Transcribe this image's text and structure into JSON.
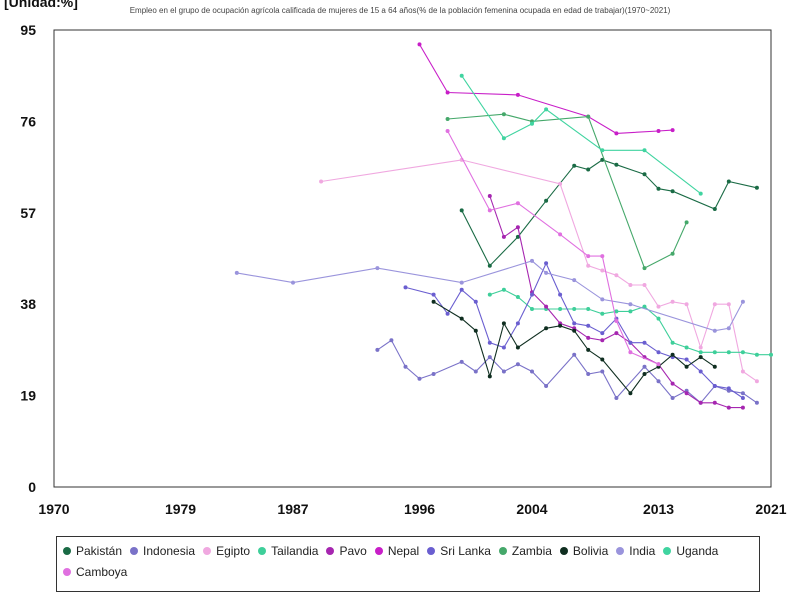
{
  "chart_data": {
    "type": "line",
    "title": "Empleo en el grupo de ocupación agrícola calificada de mujeres de 15 a 64 años(% de la población femenina ocupada en edad de trabajar)(1970~2021)",
    "ylabel": "[Unidad:%]",
    "xlabel": "",
    "xlim": [
      1970,
      2021
    ],
    "ylim": [
      0,
      95
    ],
    "x_ticks": [
      "1970",
      "1979",
      "1987",
      "1996",
      "2004",
      "2013",
      "2021"
    ],
    "x_tick_values": [
      1970,
      1979,
      1987,
      1996,
      2004,
      2013,
      2021
    ],
    "y_ticks": [
      "0",
      "19",
      "38",
      "57",
      "76",
      "95"
    ],
    "y_tick_values": [
      0,
      19,
      38,
      57,
      76,
      95
    ],
    "grid": true,
    "legend_position": "bottom",
    "series": [
      {
        "name": "Pakistán",
        "color": "#1a6b45",
        "points": [
          [
            1999,
            57.5
          ],
          [
            2001,
            46
          ],
          [
            2003,
            52
          ],
          [
            2005,
            59.5
          ],
          [
            2007,
            66.8
          ],
          [
            2008,
            66
          ],
          [
            2009,
            68
          ],
          [
            2010,
            67
          ],
          [
            2012,
            65
          ],
          [
            2013,
            62
          ],
          [
            2014,
            61.5
          ],
          [
            2017,
            57.8
          ],
          [
            2018,
            63.5
          ],
          [
            2020,
            62.2
          ]
        ]
      },
      {
        "name": "Indonesia",
        "color": "#7a72c8",
        "points": [
          [
            1993,
            28.5
          ],
          [
            1994,
            30.5
          ],
          [
            1995,
            25
          ],
          [
            1996,
            22.5
          ],
          [
            1997,
            23.5
          ],
          [
            1999,
            26
          ],
          [
            2000,
            24
          ],
          [
            2001,
            27
          ],
          [
            2002,
            24
          ],
          [
            2003,
            25.5
          ],
          [
            2004,
            24
          ],
          [
            2005,
            21
          ],
          [
            2007,
            27.5
          ],
          [
            2008,
            23.5
          ],
          [
            2009,
            24
          ],
          [
            2010,
            18.5
          ],
          [
            2012,
            25
          ],
          [
            2013,
            22
          ],
          [
            2014,
            18.5
          ],
          [
            2015,
            20
          ],
          [
            2016,
            17.5
          ],
          [
            2017,
            21
          ],
          [
            2018,
            20
          ],
          [
            2019,
            19.5
          ],
          [
            2020,
            17.5
          ]
        ]
      },
      {
        "name": "Egipto",
        "color": "#f0a8e0",
        "points": [
          [
            1989,
            63.5
          ],
          [
            1999,
            68
          ],
          [
            2006,
            63
          ],
          [
            2008,
            46
          ],
          [
            2009,
            45
          ],
          [
            2010,
            44
          ],
          [
            2011,
            42
          ],
          [
            2012,
            42
          ],
          [
            2013,
            37.5
          ],
          [
            2014,
            38.5
          ],
          [
            2015,
            38
          ],
          [
            2016,
            29
          ],
          [
            2017,
            38
          ],
          [
            2018,
            38
          ],
          [
            2019,
            24
          ],
          [
            2020,
            22
          ]
        ]
      },
      {
        "name": "Tailandia",
        "color": "#3ecf9a",
        "points": [
          [
            2001,
            40
          ],
          [
            2002,
            41
          ],
          [
            2003,
            39.5
          ],
          [
            2004,
            37
          ],
          [
            2005,
            37
          ],
          [
            2006,
            37
          ],
          [
            2007,
            37
          ],
          [
            2008,
            37
          ],
          [
            2009,
            36
          ],
          [
            2010,
            36.5
          ],
          [
            2011,
            36.5
          ],
          [
            2012,
            37.5
          ],
          [
            2013,
            35
          ],
          [
            2014,
            30
          ],
          [
            2015,
            29
          ],
          [
            2016,
            28
          ],
          [
            2017,
            28
          ],
          [
            2018,
            28
          ],
          [
            2019,
            28
          ],
          [
            2020,
            27.5
          ],
          [
            2021,
            27.5
          ]
        ]
      },
      {
        "name": "Pavo",
        "color": "#a626b0",
        "points": [
          [
            2001,
            60.5
          ],
          [
            2002,
            52
          ],
          [
            2003,
            54
          ],
          [
            2004,
            40.5
          ],
          [
            2005,
            37.5
          ],
          [
            2006,
            34
          ],
          [
            2007,
            33
          ],
          [
            2008,
            31
          ],
          [
            2009,
            30.5
          ],
          [
            2010,
            32
          ],
          [
            2011,
            30
          ],
          [
            2012,
            27
          ],
          [
            2013,
            25.5
          ],
          [
            2014,
            21.5
          ],
          [
            2015,
            19.5
          ],
          [
            2016,
            17.5
          ],
          [
            2017,
            17.5
          ],
          [
            2018,
            16.5
          ],
          [
            2019,
            16.5
          ]
        ]
      },
      {
        "name": "Nepal",
        "color": "#c81ec8",
        "points": [
          [
            1996,
            92
          ],
          [
            1998,
            82
          ],
          [
            2003,
            81.5
          ],
          [
            2008,
            77
          ],
          [
            2010,
            73.5
          ],
          [
            2013,
            74
          ],
          [
            2014,
            74.2
          ]
        ]
      },
      {
        "name": "Sri Lanka",
        "color": "#6a5ed0",
        "points": [
          [
            1995,
            41.5
          ],
          [
            1997,
            40
          ],
          [
            1998,
            36
          ],
          [
            1999,
            41
          ],
          [
            2000,
            38.5
          ],
          [
            2001,
            30
          ],
          [
            2002,
            29
          ],
          [
            2003,
            34
          ],
          [
            2004,
            40
          ],
          [
            2005,
            46.5
          ],
          [
            2006,
            40
          ],
          [
            2007,
            34
          ],
          [
            2008,
            33.5
          ],
          [
            2009,
            32
          ],
          [
            2010,
            35
          ],
          [
            2011,
            30
          ],
          [
            2012,
            30
          ],
          [
            2013,
            28
          ],
          [
            2014,
            27
          ],
          [
            2015,
            26.5
          ],
          [
            2016,
            24
          ],
          [
            2017,
            21
          ],
          [
            2018,
            20.5
          ],
          [
            2019,
            18.5
          ]
        ]
      },
      {
        "name": "Zambia",
        "color": "#45a86a",
        "points": [
          [
            1998,
            76.5
          ],
          [
            2002,
            77.5
          ],
          [
            2004,
            76
          ],
          [
            2008,
            77
          ],
          [
            2012,
            45.5
          ],
          [
            2014,
            48.5
          ],
          [
            2015,
            55
          ]
        ]
      },
      {
        "name": "Bolivia",
        "color": "#0f2e20",
        "points": [
          [
            1997,
            38.5
          ],
          [
            1999,
            35
          ],
          [
            2000,
            32.5
          ],
          [
            2001,
            23
          ],
          [
            2002,
            34
          ],
          [
            2003,
            29
          ],
          [
            2005,
            33
          ],
          [
            2006,
            33.5
          ],
          [
            2007,
            32.5
          ],
          [
            2008,
            28.5
          ],
          [
            2009,
            26.5
          ],
          [
            2011,
            19.5
          ],
          [
            2012,
            23.5
          ],
          [
            2013,
            25
          ],
          [
            2014,
            27.5
          ],
          [
            2015,
            25
          ],
          [
            2016,
            27
          ],
          [
            2017,
            25
          ]
        ]
      },
      {
        "name": "India",
        "color": "#9a94dc",
        "points": [
          [
            1983,
            44.5
          ],
          [
            1987,
            42.5
          ],
          [
            1993,
            45.5
          ],
          [
            1999,
            42.5
          ],
          [
            2004,
            47
          ],
          [
            2005,
            44.5
          ],
          [
            2007,
            43
          ],
          [
            2009,
            39
          ],
          [
            2011,
            38
          ],
          [
            2017,
            32.5
          ],
          [
            2018,
            33
          ],
          [
            2019,
            38.5
          ]
        ]
      },
      {
        "name": "Uganda",
        "color": "#40d4a0",
        "points": [
          [
            1999,
            85.5
          ],
          [
            2002,
            72.5
          ],
          [
            2004,
            75.5
          ],
          [
            2005,
            78.5
          ],
          [
            2009,
            70
          ],
          [
            2012,
            70
          ],
          [
            2016,
            61
          ]
        ]
      },
      {
        "name": "Camboya",
        "color": "#e070e0",
        "points": [
          [
            1998,
            74
          ],
          [
            2001,
            57.5
          ],
          [
            2003,
            59
          ],
          [
            2006,
            52.5
          ],
          [
            2008,
            48
          ],
          [
            2009,
            48
          ],
          [
            2010,
            34.5
          ],
          [
            2011,
            28
          ],
          [
            2013,
            25.5
          ]
        ]
      }
    ]
  }
}
